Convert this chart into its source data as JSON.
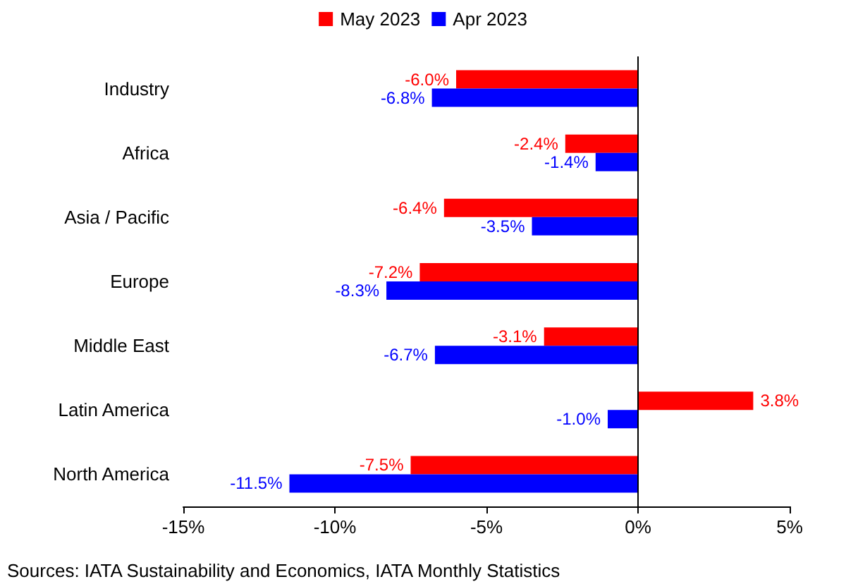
{
  "chart_data": {
    "type": "bar",
    "orientation": "horizontal",
    "categories": [
      "Industry",
      "Africa",
      "Asia / Pacific",
      "Europe",
      "Middle East",
      "Latin America",
      "North America"
    ],
    "series": [
      {
        "name": "May 2023",
        "color": "#ff0000",
        "values": [
          -6.0,
          -2.4,
          -6.4,
          -7.2,
          -3.1,
          3.8,
          -7.5
        ],
        "value_labels": [
          "-6.0%",
          "-2.4%",
          "-6.4%",
          "-7.2%",
          "-3.1%",
          "3.8%",
          "-7.5%"
        ]
      },
      {
        "name": "Apr 2023",
        "color": "#0000ff",
        "values": [
          -6.8,
          -1.4,
          -3.5,
          -8.3,
          -6.7,
          -1.0,
          -11.5
        ],
        "value_labels": [
          "-6.8%",
          "-1.4%",
          "-3.5%",
          "-8.3%",
          "-6.7%",
          "-1.0%",
          "-11.5%"
        ]
      }
    ],
    "xlim": [
      -15,
      5
    ],
    "xticks": [
      {
        "value": -15,
        "label": "-15%"
      },
      {
        "value": -10,
        "label": "-10%"
      },
      {
        "value": -5,
        "label": "-5%"
      },
      {
        "value": 0,
        "label": "0%"
      },
      {
        "value": 5,
        "label": "5%"
      }
    ],
    "legend": "top",
    "grid": false,
    "ref_lines": [
      {
        "axis": "x",
        "value": 0,
        "color": "#000000"
      }
    ],
    "annotations": [
      "Sources: IATA Sustainability and Economics, IATA Monthly Statistics"
    ]
  }
}
